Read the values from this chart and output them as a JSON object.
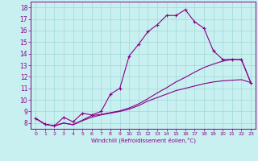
{
  "xlabel": "Windchill (Refroidissement éolien,°C)",
  "bg_color": "#c8f0f0",
  "line_color": "#880088",
  "grid_color": "#a0d8d8",
  "xlim": [
    -0.5,
    23.5
  ],
  "ylim": [
    7.5,
    18.5
  ],
  "xticks": [
    0,
    1,
    2,
    3,
    4,
    5,
    6,
    7,
    8,
    9,
    10,
    11,
    12,
    13,
    14,
    15,
    16,
    17,
    18,
    19,
    20,
    21,
    22,
    23
  ],
  "yticks": [
    8,
    9,
    10,
    11,
    12,
    13,
    14,
    15,
    16,
    17,
    18
  ],
  "line1_x": [
    0,
    1,
    2,
    3,
    4,
    5,
    6,
    7,
    8,
    9,
    10,
    11,
    12,
    13,
    14,
    15,
    16,
    17,
    18,
    19,
    20,
    21,
    22,
    23
  ],
  "line1_y": [
    8.4,
    7.9,
    7.75,
    8.5,
    8.1,
    8.85,
    8.7,
    9.0,
    10.5,
    11.0,
    13.8,
    14.8,
    15.9,
    16.5,
    17.3,
    17.3,
    17.8,
    16.75,
    16.2,
    14.25,
    13.5,
    13.5,
    13.5,
    11.5
  ],
  "line2_x": [
    0,
    1,
    2,
    3,
    4,
    5,
    6,
    7,
    8,
    9,
    10,
    11,
    12,
    13,
    14,
    15,
    16,
    17,
    18,
    19,
    20,
    21,
    22,
    23
  ],
  "line2_y": [
    8.4,
    7.9,
    7.75,
    8.0,
    7.85,
    8.2,
    8.5,
    8.7,
    8.85,
    9.0,
    9.2,
    9.5,
    9.9,
    10.2,
    10.5,
    10.8,
    11.0,
    11.2,
    11.4,
    11.55,
    11.65,
    11.7,
    11.75,
    11.5
  ],
  "line3_x": [
    0,
    1,
    2,
    3,
    4,
    5,
    6,
    7,
    8,
    9,
    10,
    11,
    12,
    13,
    14,
    15,
    16,
    17,
    18,
    19,
    20,
    21,
    22,
    23
  ],
  "line3_y": [
    8.4,
    7.9,
    7.75,
    8.0,
    7.85,
    8.25,
    8.65,
    8.75,
    8.9,
    9.05,
    9.3,
    9.65,
    10.1,
    10.6,
    11.05,
    11.55,
    11.95,
    12.4,
    12.8,
    13.1,
    13.35,
    13.5,
    13.5,
    11.5
  ],
  "marker_x": [
    0,
    1,
    2,
    3,
    4,
    5,
    6,
    7,
    8,
    9,
    10,
    11,
    12,
    13,
    14,
    15,
    16,
    17,
    18,
    19,
    20,
    21,
    22,
    23
  ],
  "marker_y": [
    8.4,
    7.9,
    7.75,
    8.5,
    8.1,
    8.85,
    8.7,
    9.0,
    10.5,
    11.0,
    13.8,
    14.8,
    15.9,
    16.5,
    17.3,
    17.3,
    17.8,
    16.75,
    16.2,
    14.25,
    13.5,
    13.5,
    13.5,
    11.5
  ]
}
